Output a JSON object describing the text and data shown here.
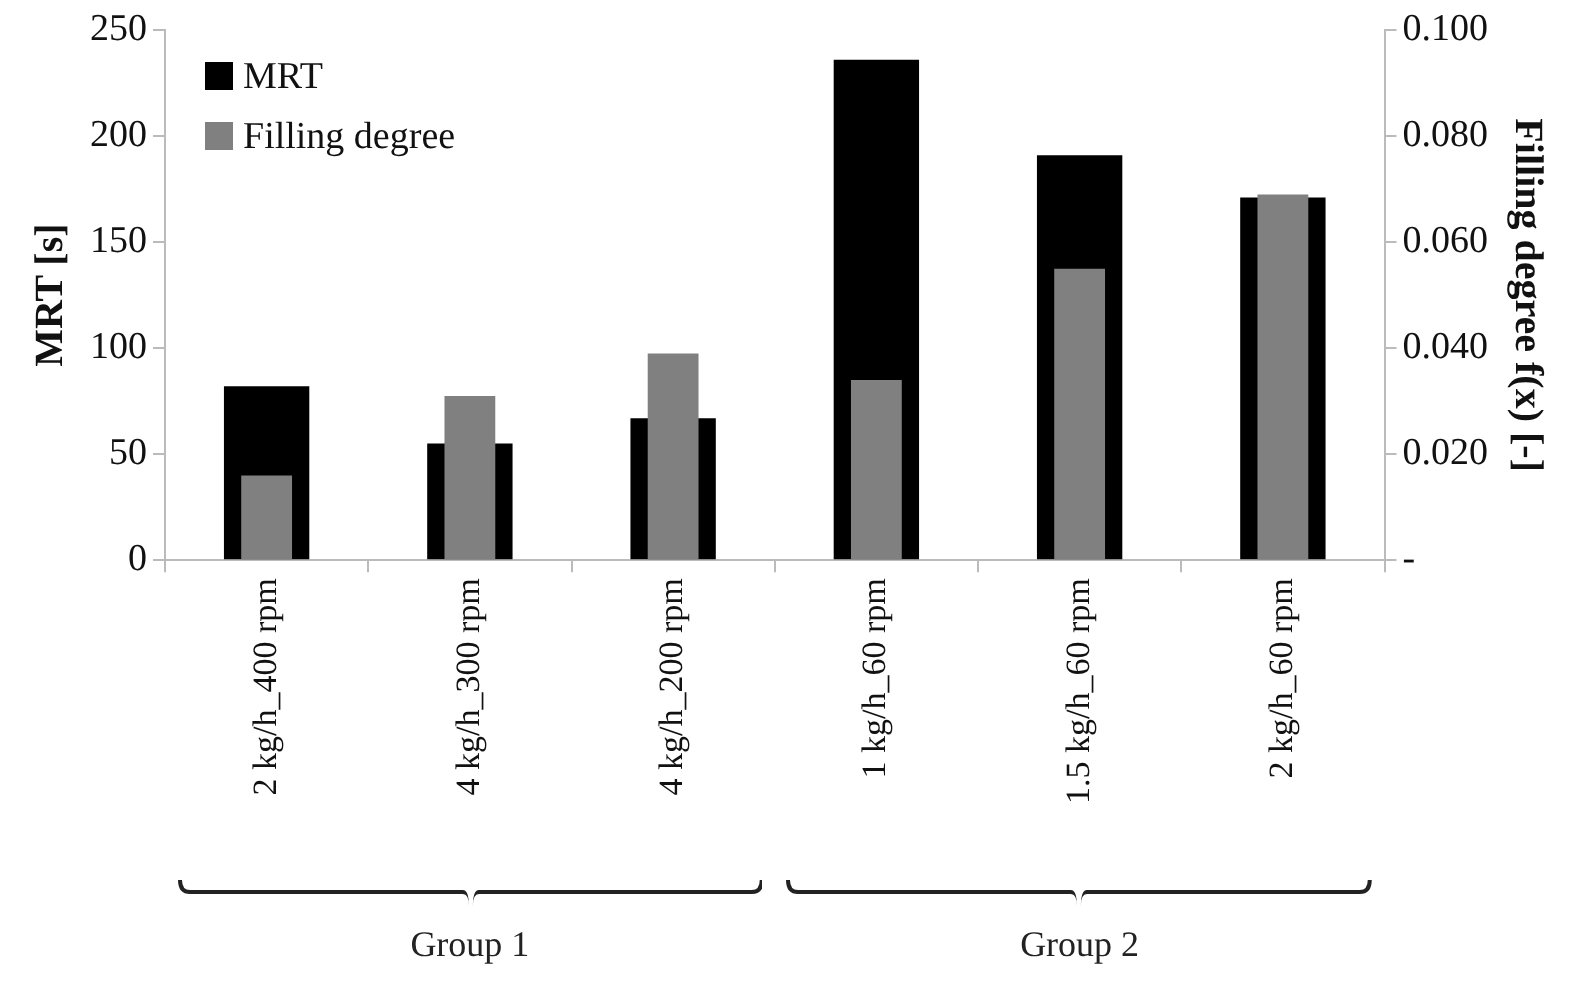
{
  "chart_data": {
    "type": "bar",
    "ylabel": "MRT [s]",
    "y2label": "Filling degree f(x) [-]",
    "categories": [
      "2 kg/h_400 rpm",
      "4 kg/h_300 rpm",
      "4 kg/h_200 rpm",
      "1 kg/h_60 rpm",
      "1.5 kg/h_60 rpm",
      "2 kg/h_60 rpm"
    ],
    "series": [
      {
        "name": "MRT",
        "color": "#000000",
        "values": [
          82,
          55,
          67,
          236,
          191,
          171
        ]
      },
      {
        "name": "Filling degree",
        "color": "#808080",
        "axis": "y2",
        "values": [
          0.016,
          0.031,
          0.039,
          0.034,
          0.055,
          0.069
        ]
      }
    ],
    "ylim": [
      0,
      250
    ],
    "yticks": [
      0,
      50,
      100,
      150,
      200,
      250
    ],
    "y2lim": [
      0,
      0.1
    ],
    "y2ticks": [
      {
        "value": 0,
        "label": "-"
      },
      {
        "value": 0.02,
        "label": "0.020"
      },
      {
        "value": 0.04,
        "label": "0.040"
      },
      {
        "value": 0.06,
        "label": "0.060"
      },
      {
        "value": 0.08,
        "label": "0.080"
      },
      {
        "value": 0.1,
        "label": "0.100"
      }
    ],
    "grid": false,
    "legend": "top left",
    "annotations": [
      "Group 1",
      "Group 2"
    ]
  }
}
